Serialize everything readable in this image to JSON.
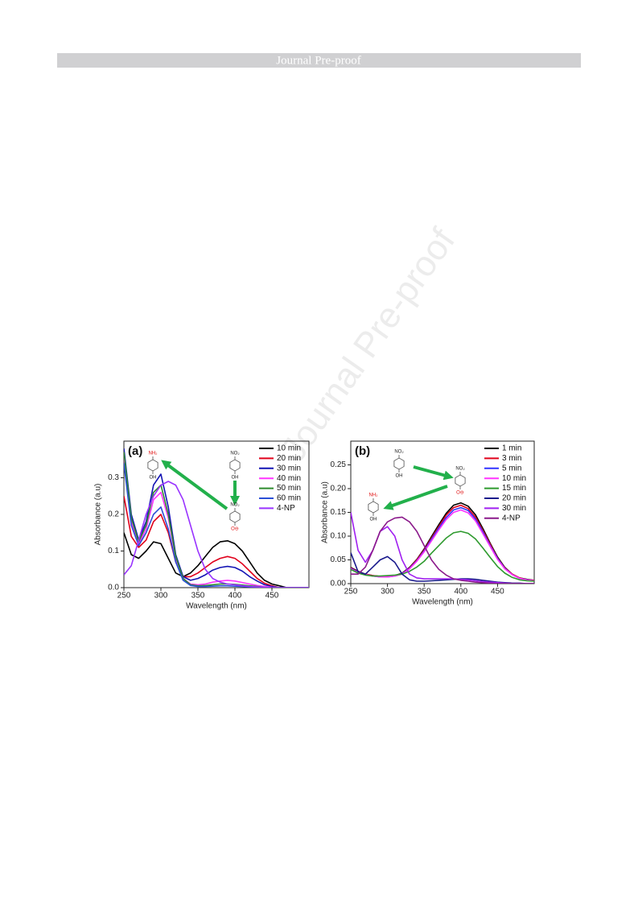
{
  "header": "Journal Pre-proof",
  "watermark": "Journal Pre-proof",
  "chart_data": [
    {
      "type": "line",
      "title": "(a)",
      "xlabel": "Wavelength (nm)",
      "ylabel": "Absorbance (a.u)",
      "xlim": [
        250,
        500
      ],
      "xticks": [
        250,
        300,
        350,
        400,
        450
      ],
      "ylim": [
        0,
        0.4
      ],
      "yticks": [
        {
          "value": 0,
          "label": "0.0"
        },
        0.1,
        0.2,
        0.3
      ],
      "legend": "upper right",
      "structures": [
        {
          "top": "NH₂",
          "bottom": "OH"
        },
        {
          "top": "NO₂",
          "bottom": "OH"
        },
        {
          "top": "NO₂",
          "bottom": "O⊖"
        }
      ],
      "x": [
        250,
        260,
        270,
        280,
        290,
        300,
        310,
        320,
        330,
        340,
        350,
        360,
        370,
        380,
        390,
        400,
        410,
        420,
        430,
        440,
        450,
        460,
        470,
        480,
        490,
        500
      ],
      "series": [
        {
          "name": "10 min",
          "color": "#000000",
          "values": [
            0.15,
            0.09,
            0.08,
            0.1,
            0.125,
            0.12,
            0.08,
            0.04,
            0.03,
            0.04,
            0.06,
            0.085,
            0.11,
            0.125,
            0.128,
            0.12,
            0.1,
            0.07,
            0.04,
            0.02,
            0.01,
            0.005,
            0,
            0,
            0,
            0
          ]
        },
        {
          "name": "20 min",
          "color": "#e0001b",
          "values": [
            0.25,
            0.14,
            0.11,
            0.13,
            0.18,
            0.2,
            0.15,
            0.07,
            0.03,
            0.03,
            0.04,
            0.055,
            0.07,
            0.08,
            0.085,
            0.08,
            0.065,
            0.045,
            0.025,
            0.012,
            0.005,
            0,
            0,
            0,
            0,
            0
          ]
        },
        {
          "name": "30 min",
          "color": "#1414b4",
          "values": [
            0.38,
            0.2,
            0.13,
            0.18,
            0.28,
            0.31,
            0.22,
            0.09,
            0.03,
            0.02,
            0.025,
            0.035,
            0.048,
            0.055,
            0.058,
            0.055,
            0.045,
            0.03,
            0.018,
            0.008,
            0.003,
            0,
            0,
            0,
            0,
            0
          ]
        },
        {
          "name": "40 min",
          "color": "#ff33ff",
          "values": [
            0.36,
            0.18,
            0.12,
            0.16,
            0.24,
            0.26,
            0.19,
            0.08,
            0.025,
            0.01,
            0.008,
            0.01,
            0.015,
            0.018,
            0.02,
            0.018,
            0.014,
            0.01,
            0.006,
            0.003,
            0.001,
            0,
            0,
            0,
            0,
            0
          ]
        },
        {
          "name": "50 min",
          "color": "#2e8b2e",
          "values": [
            0.37,
            0.19,
            0.125,
            0.17,
            0.26,
            0.28,
            0.2,
            0.085,
            0.025,
            0.008,
            0.005,
            0.006,
            0.008,
            0.01,
            0.01,
            0.009,
            0.007,
            0.005,
            0.003,
            0.001,
            0,
            0,
            0,
            0,
            0,
            0
          ]
        },
        {
          "name": "60 min",
          "color": "#2a4fd6",
          "values": [
            0.34,
            0.17,
            0.115,
            0.15,
            0.2,
            0.22,
            0.16,
            0.07,
            0.02,
            0.006,
            0.003,
            0.003,
            0.004,
            0.005,
            0.005,
            0.004,
            0.003,
            0.002,
            0.001,
            0,
            0,
            0,
            0,
            0,
            0,
            0
          ]
        },
        {
          "name": "4-NP",
          "color": "#9933ff",
          "values": [
            0.035,
            0.06,
            0.13,
            0.2,
            0.25,
            0.28,
            0.29,
            0.28,
            0.24,
            0.17,
            0.1,
            0.05,
            0.025,
            0.015,
            0.01,
            0.008,
            0.005,
            0.003,
            0.002,
            0.001,
            0,
            0,
            0,
            0,
            0,
            0
          ]
        }
      ]
    },
    {
      "type": "line",
      "title": "(b)",
      "xlabel": "Wavelength (nm)",
      "ylabel": "Absorbance (a.u)",
      "xlim": [
        250,
        500
      ],
      "xticks": [
        250,
        300,
        350,
        400,
        450
      ],
      "ylim": [
        0,
        0.3
      ],
      "yticks": [
        {
          "value": 0,
          "label": "0.00"
        },
        {
          "value": 0.05,
          "label": "0.05"
        },
        {
          "value": 0.1,
          "label": "0.10"
        },
        {
          "value": 0.15,
          "label": "0.15"
        },
        {
          "value": 0.2,
          "label": "0.20"
        },
        {
          "value": 0.25,
          "label": "0.25"
        }
      ],
      "legend": "upper right",
      "structures": [
        {
          "top": "NO₂",
          "bottom": "OH"
        },
        {
          "top": "NO₂",
          "bottom": "O⊖"
        },
        {
          "top": "NH₂",
          "bottom": "OH"
        }
      ],
      "x": [
        250,
        260,
        270,
        280,
        290,
        300,
        310,
        320,
        330,
        340,
        350,
        360,
        370,
        380,
        390,
        400,
        410,
        420,
        430,
        440,
        450,
        460,
        470,
        480,
        490,
        500
      ],
      "series": [
        {
          "name": "1 min",
          "color": "#000000",
          "values": [
            0.034,
            0.026,
            0.02,
            0.017,
            0.015,
            0.015,
            0.017,
            0.022,
            0.034,
            0.051,
            0.073,
            0.099,
            0.124,
            0.148,
            0.165,
            0.17,
            0.163,
            0.145,
            0.116,
            0.085,
            0.056,
            0.034,
            0.02,
            0.012,
            0.009,
            0.007
          ]
        },
        {
          "name": "3 min",
          "color": "#e0001b",
          "values": [
            0.033,
            0.025,
            0.02,
            0.017,
            0.015,
            0.015,
            0.017,
            0.021,
            0.033,
            0.05,
            0.071,
            0.096,
            0.12,
            0.144,
            0.16,
            0.165,
            0.158,
            0.14,
            0.112,
            0.083,
            0.054,
            0.033,
            0.02,
            0.012,
            0.008,
            0.007
          ]
        },
        {
          "name": "5 min",
          "color": "#3333ff",
          "values": [
            0.032,
            0.024,
            0.019,
            0.016,
            0.014,
            0.014,
            0.016,
            0.021,
            0.032,
            0.048,
            0.069,
            0.093,
            0.117,
            0.139,
            0.155,
            0.16,
            0.154,
            0.136,
            0.109,
            0.08,
            0.053,
            0.032,
            0.019,
            0.011,
            0.008,
            0.006
          ]
        },
        {
          "name": "10 min",
          "color": "#ff33ff",
          "values": [
            0.031,
            0.023,
            0.019,
            0.016,
            0.014,
            0.014,
            0.016,
            0.02,
            0.031,
            0.047,
            0.067,
            0.09,
            0.113,
            0.135,
            0.15,
            0.155,
            0.149,
            0.132,
            0.105,
            0.078,
            0.051,
            0.031,
            0.019,
            0.011,
            0.008,
            0.006
          ]
        },
        {
          "name": "15 min",
          "color": "#2e9a2e",
          "values": [
            0.03,
            0.022,
            0.018,
            0.016,
            0.016,
            0.017,
            0.018,
            0.02,
            0.026,
            0.035,
            0.047,
            0.064,
            0.08,
            0.096,
            0.107,
            0.11,
            0.106,
            0.094,
            0.075,
            0.055,
            0.036,
            0.022,
            0.013,
            0.008,
            0.006,
            0.005
          ]
        },
        {
          "name": "20 min",
          "color": "#1a1a8c",
          "values": [
            0.065,
            0.025,
            0.02,
            0.035,
            0.05,
            0.057,
            0.045,
            0.02,
            0.008,
            0.005,
            0.005,
            0.006,
            0.007,
            0.008,
            0.009,
            0.01,
            0.01,
            0.009,
            0.007,
            0.005,
            0.003,
            0.002,
            0.001,
            0.001,
            0,
            0
          ]
        },
        {
          "name": "30 min",
          "color": "#a020f0",
          "values": [
            0.15,
            0.07,
            0.045,
            0.07,
            0.11,
            0.12,
            0.1,
            0.05,
            0.02,
            0.012,
            0.01,
            0.01,
            0.01,
            0.01,
            0.01,
            0.009,
            0.008,
            0.006,
            0.004,
            0.003,
            0.002,
            0.001,
            0,
            0,
            0,
            0
          ]
        },
        {
          "name": "4-NP",
          "color": "#8b1a8b",
          "values": [
            0.02,
            0.02,
            0.035,
            0.07,
            0.11,
            0.13,
            0.138,
            0.14,
            0.13,
            0.11,
            0.08,
            0.05,
            0.03,
            0.018,
            0.01,
            0.007,
            0.005,
            0.003,
            0.002,
            0.001,
            0,
            0,
            0,
            0,
            0,
            0
          ]
        }
      ]
    }
  ]
}
